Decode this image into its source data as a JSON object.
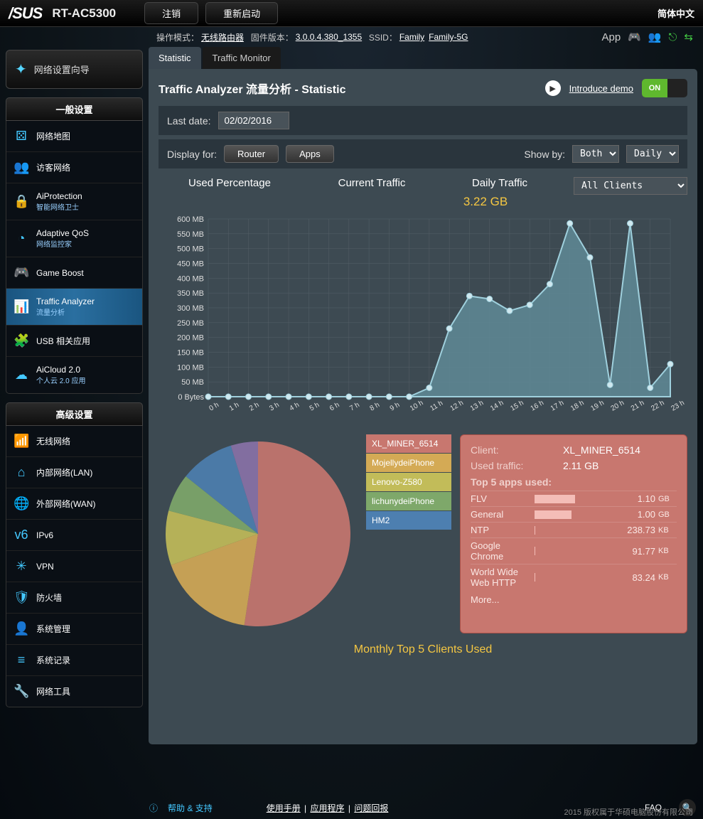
{
  "topbar": {
    "logo": "/SUS",
    "model": "RT-AC5300",
    "logout": "注销",
    "reboot": "重新启动",
    "lang": "简体中文"
  },
  "info": {
    "mode_lbl": "操作模式：",
    "mode": "无线路由器",
    "fw_lbl": "固件版本：",
    "fw": "3.0.0.4.380_1355",
    "ssid_lbl": "SSID：",
    "ssid1": "Family",
    "ssid2": "Family-5G",
    "app": "App"
  },
  "wizard": "网络设置向导",
  "sec1": "一般设置",
  "nav1": [
    {
      "icon": "⚄",
      "label": "网络地图"
    },
    {
      "icon": "👥",
      "label": "访客网络"
    },
    {
      "icon": "🔒",
      "label": "AiProtection",
      "sub": "智能网络卫士"
    },
    {
      "icon": "◔",
      "label": "Adaptive QoS",
      "sub": "网络监控家"
    },
    {
      "icon": "🎮",
      "label": "Game Boost"
    },
    {
      "icon": "📊",
      "label": "Traffic Analyzer",
      "sub": "流量分析",
      "active": true
    },
    {
      "icon": "🧩",
      "label": "USB 相关应用"
    },
    {
      "icon": "☁",
      "label": "AiCloud 2.0",
      "sub": "个人云 2.0 应用"
    }
  ],
  "sec2": "高级设置",
  "nav2": [
    {
      "icon": "📶",
      "label": "无线网络"
    },
    {
      "icon": "⌂",
      "label": "内部网络(LAN)"
    },
    {
      "icon": "🌐",
      "label": "外部网络(WAN)"
    },
    {
      "icon": "v6",
      "label": "IPv6"
    },
    {
      "icon": "✳",
      "label": "VPN"
    },
    {
      "icon": "🛡",
      "label": "防火墙"
    },
    {
      "icon": "👤",
      "label": "系统管理"
    },
    {
      "icon": "≡",
      "label": "系统记录"
    },
    {
      "icon": "🔧",
      "label": "网络工具"
    }
  ],
  "tabs": [
    "Statistic",
    "Traffic Monitor"
  ],
  "title": "Traffic Analyzer 流量分析 - Statistic",
  "demo": "Introduce demo",
  "on": "ON",
  "lastdate_lbl": "Last date:",
  "lastdate": "02/02/2016",
  "display_lbl": "Display for:",
  "btn_router": "Router",
  "btn_apps": "Apps",
  "showby_lbl": "Show by:",
  "sel_both": "Both",
  "sel_daily": "Daily",
  "hdr_used": "Used Percentage",
  "hdr_cur": "Current Traffic",
  "hdr_daily": "Daily Traffic",
  "daily_val": "3.22 GB",
  "sel_clients": "All Clients",
  "chart": {
    "type": "area",
    "ylabels": [
      "600 MB",
      "550 MB",
      "500 MB",
      "450 MB",
      "400 MB",
      "350 MB",
      "300 MB",
      "250 MB",
      "200 MB",
      "150 MB",
      "100 MB",
      "50 MB",
      "0 Bytes"
    ],
    "ymax": 600,
    "xhours": [
      "0 h",
      "1 h",
      "2 h",
      "3 h",
      "4 h",
      "5 h",
      "6 h",
      "7 h",
      "8 h",
      "9 h",
      "10 h",
      "11 h",
      "12 h",
      "13 h",
      "14 h",
      "15 h",
      "16 h",
      "17 h",
      "18 h",
      "19 h",
      "20 h",
      "21 h",
      "22 h",
      "23 h"
    ],
    "values": [
      0,
      0,
      0,
      0,
      0,
      0,
      0,
      0,
      0,
      0,
      0,
      30,
      230,
      340,
      330,
      290,
      310,
      380,
      585,
      470,
      40,
      585,
      30,
      110
    ],
    "fill": "#5f8a96",
    "stroke": "#9fd0dd",
    "marker": "#cfe8ef",
    "grid": "#556068",
    "bg": "#3d4a52"
  },
  "pie": {
    "type": "pie",
    "slices": [
      {
        "label": "XL_MINER_6514",
        "value": 55,
        "color": "#c8776f"
      },
      {
        "label": "MojellydeiPhone",
        "value": 18,
        "color": "#d4aa55"
      },
      {
        "label": "Lenovo-Z580",
        "value": 10,
        "color": "#c2bc59"
      },
      {
        "label": "lichunydeiPhone",
        "value": 7,
        "color": "#7ea86a"
      },
      {
        "label": "HM2",
        "value": 10,
        "color": "#4d7fb0"
      }
    ],
    "extra_slice": {
      "value": 0,
      "color": "#8a72a8"
    }
  },
  "detail": {
    "client_lbl": "Client:",
    "client": "XL_MINER_6514",
    "used_lbl": "Used traffic:",
    "used": "2.11 GB",
    "top5": "Top 5 apps used:",
    "apps": [
      {
        "name": "FLV",
        "bar": 52,
        "val": "1.10",
        "unit": "GB"
      },
      {
        "name": "General",
        "bar": 47,
        "val": "1.00",
        "unit": "GB"
      },
      {
        "name": "NTP",
        "bar": 1,
        "val": "238.73",
        "unit": "KB"
      },
      {
        "name": "Google Chrome",
        "bar": 1,
        "val": "91.77",
        "unit": "KB"
      },
      {
        "name": "World Wide Web HTTP",
        "bar": 1,
        "val": "83.24",
        "unit": "KB"
      }
    ],
    "more": "More..."
  },
  "caption": "Monthly Top 5 Clients Used",
  "footer": {
    "help": "帮助 & 支持",
    "manual": "使用手册",
    "apps": "应用程序",
    "feedback": "问题回报",
    "faq": "FAQ"
  },
  "copyright": "2015 版权属于华硕电脑股份有限公司"
}
